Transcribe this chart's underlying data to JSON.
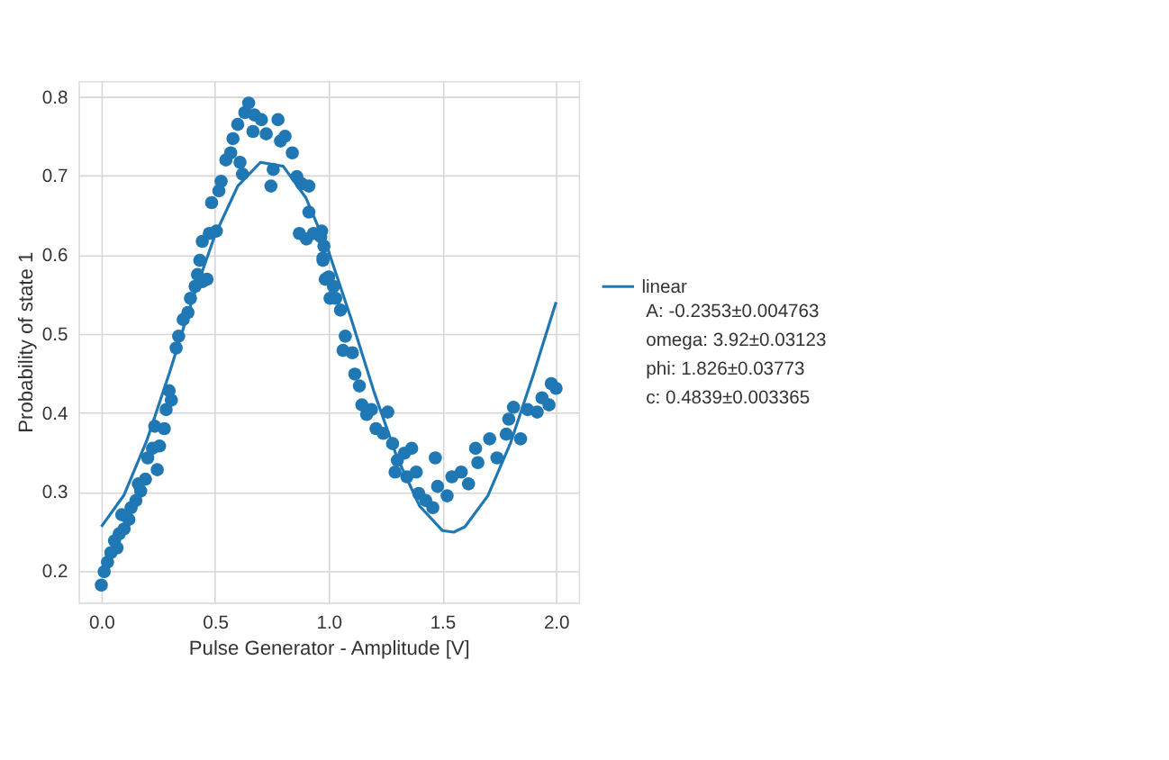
{
  "chart_data": {
    "type": "scatter",
    "xlabel": "Pulse Generator - Amplitude [V]",
    "ylabel": "Probability of state 1",
    "xlim": [
      -0.1,
      2.1
    ],
    "ylim": [
      0.16,
      0.82
    ],
    "xticks": [
      {
        "value": 0,
        "label": "0.0"
      },
      0.5,
      {
        "value": 1,
        "label": "1.0"
      },
      1.5,
      {
        "value": 2,
        "label": "2.0"
      }
    ],
    "yticks": [
      0.2,
      0.3,
      0.4,
      0.5,
      0.6,
      0.7,
      0.8
    ],
    "grid": true,
    "legend": "right",
    "marker": "circle",
    "annotations": [
      "A: -0.2353±0.004763",
      "omega: 3.92±0.03123",
      "phi: 1.826±0.03773",
      "c: 0.4839±0.003365"
    ],
    "series": [
      {
        "type": "scatter",
        "color": "#1f77b4",
        "x": [
          0,
          0.0125,
          0.027,
          0.042,
          0.058,
          0.069,
          0.079,
          0.1,
          0.09,
          0.121,
          0.131,
          0.152,
          0.173,
          0.163,
          0.194,
          0.204,
          0.246,
          0.225,
          0.256,
          0.235,
          0.277,
          0.285,
          0.308,
          0.298,
          0.329,
          0.34,
          0.36,
          0.381,
          0.392,
          0.4125,
          0.444,
          0.465,
          0.423,
          0.433,
          0.444,
          0.475,
          0.506,
          0.485,
          0.517,
          0.527,
          0.548,
          0.569,
          0.579,
          0.61,
          0.621,
          0.6,
          0.631,
          0.648,
          0.667,
          0.673,
          0.704,
          0.725,
          0.746,
          0.756,
          0.777,
          0.788,
          0.808,
          0.84,
          0.86,
          0.881,
          0.913,
          0.913,
          0.871,
          0.902,
          0.933,
          0.965,
          0.975,
          0.985,
          1.006,
          0.969,
          0.979,
          0.975,
          1.0,
          1.021,
          1.031,
          1.052,
          1.073,
          1.063,
          1.104,
          1.115,
          1.135,
          1.146,
          1.167,
          1.188,
          1.208,
          1.26,
          1.24,
          1.281,
          1.302,
          1.292,
          1.333,
          1.365,
          1.344,
          1.385,
          1.396,
          1.427,
          1.458,
          1.469,
          1.479,
          1.521,
          1.542,
          1.583,
          1.615,
          1.646,
          1.656,
          1.708,
          1.74,
          1.781,
          1.792,
          1.813,
          1.844,
          1.875,
          1.917,
          1.938,
          1.969,
          1.979,
          2.0
        ],
        "values": [
          0.182,
          0.199,
          0.211,
          0.223,
          0.238,
          0.229,
          0.247,
          0.253,
          0.271,
          0.265,
          0.28,
          0.289,
          0.301,
          0.31,
          0.316,
          0.343,
          0.328,
          0.355,
          0.358,
          0.383,
          0.38,
          0.404,
          0.416,
          0.428,
          0.482,
          0.497,
          0.518,
          0.527,
          0.545,
          0.56,
          0.566,
          0.569,
          0.575,
          0.593,
          0.617,
          0.627,
          0.63,
          0.666,
          0.681,
          0.693,
          0.72,
          0.729,
          0.747,
          0.717,
          0.702,
          0.765,
          0.78,
          0.792,
          0.756,
          0.777,
          0.771,
          0.753,
          0.687,
          0.708,
          0.771,
          0.744,
          0.75,
          0.729,
          0.699,
          0.69,
          0.687,
          0.654,
          0.627,
          0.62,
          0.627,
          0.623,
          0.596,
          0.569,
          0.545,
          0.63,
          0.611,
          0.593,
          0.572,
          0.56,
          0.545,
          0.53,
          0.497,
          0.479,
          0.476,
          0.449,
          0.434,
          0.41,
          0.398,
          0.404,
          0.38,
          0.401,
          0.374,
          0.361,
          0.34,
          0.325,
          0.349,
          0.355,
          0.319,
          0.325,
          0.298,
          0.289,
          0.28,
          0.343,
          0.307,
          0.295,
          0.319,
          0.325,
          0.31,
          0.355,
          0.337,
          0.367,
          0.343,
          0.373,
          0.392,
          0.407,
          0.367,
          0.404,
          0.401,
          0.419,
          0.41,
          0.437,
          0.431
        ]
      },
      {
        "type": "line",
        "name": "linear",
        "color": "#1f77b4",
        "marker": "none",
        "line_style": "solid",
        "x": [
          0,
          0.1,
          0.2,
          0.3,
          0.4,
          0.5,
          0.6,
          0.7,
          0.8,
          0.9,
          1.0,
          1.1,
          1.2,
          1.3,
          1.4,
          1.5,
          1.55,
          1.6,
          1.7,
          1.8,
          1.9,
          2.0
        ],
        "values": [
          0.256,
          0.296,
          0.365,
          0.451,
          0.543,
          0.625,
          0.687,
          0.717,
          0.712,
          0.672,
          0.604,
          0.518,
          0.426,
          0.344,
          0.282,
          0.251,
          0.249,
          0.256,
          0.295,
          0.362,
          0.448,
          0.54
        ]
      }
    ]
  }
}
